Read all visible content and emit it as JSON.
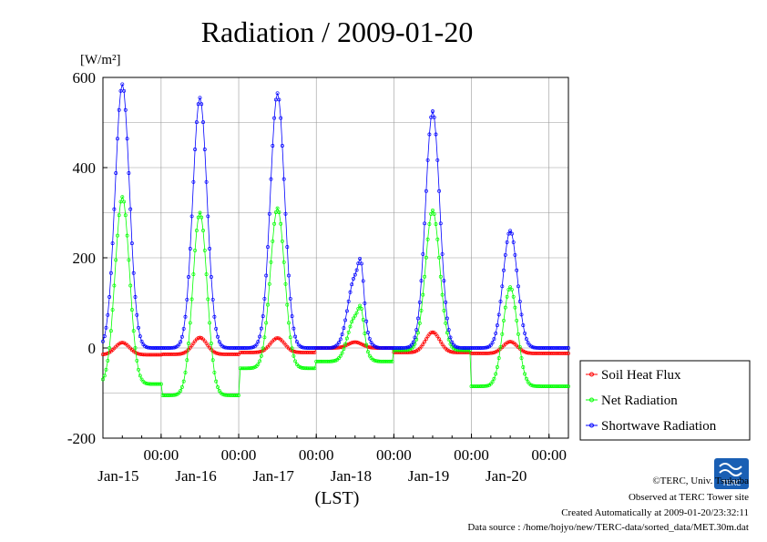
{
  "chart_data": {
    "type": "line",
    "title": "Radiation / 2009-01-20",
    "ylabel": "[W/m²]",
    "xlabel": "(LST)",
    "ylim": [
      -200,
      600
    ],
    "xlim": [
      -0.25,
      5.75
    ],
    "grid": true,
    "legend_position": "right-bottom-outside",
    "y_ticks": [
      "600",
      "400",
      "200",
      "0",
      "-200"
    ],
    "y_tick_values": [
      600,
      400,
      200,
      0,
      -200
    ],
    "x_ticks": [
      {
        "time": "00:00",
        "date": "Jan-15"
      },
      {
        "time": "00:00",
        "date": "Jan-16"
      },
      {
        "time": "00:00",
        "date": "Jan-17"
      },
      {
        "time": "00:00",
        "date": "Jan-18"
      },
      {
        "time": "00:00",
        "date": "Jan-19"
      },
      {
        "time": "00:00",
        "date": "Jan-20"
      }
    ],
    "x_tick_values": [
      0.5,
      1.5,
      2.5,
      3.5,
      4.5,
      5.5
    ],
    "series": [
      {
        "name": "Soil Heat Flux",
        "color": "#ff0000",
        "marker": "circle",
        "day_peaks": [
          12,
          23,
          22,
          13,
          35,
          14
        ],
        "night_level": [
          -15,
          -14,
          -10,
          0,
          -10,
          -12
        ]
      },
      {
        "name": "Net Radiation",
        "color": "#00ff00",
        "marker": "circle",
        "day_peaks": [
          335,
          300,
          310,
          120,
          305,
          135
        ],
        "night_level": [
          -80,
          -105,
          -45,
          -30,
          -5,
          -85
        ]
      },
      {
        "name": "Shortwave Radiation",
        "color": "#0000ff",
        "marker": "circle",
        "day_peaks": [
          585,
          555,
          565,
          240,
          525,
          260
        ],
        "night_level": [
          0,
          0,
          0,
          0,
          0,
          0
        ]
      }
    ]
  },
  "credits": {
    "copyright": "©TERC, Univ. Tsukuba",
    "observed": "Observed at TERC Tower site",
    "created": "Created Automatically at 2009-01-20/23:32:11",
    "source": "Data source : /home/hojyo/new/TERC-data/sorted_data/MET.30m.dat"
  },
  "logo": {
    "text": "TERC",
    "color": "#1a5fb4"
  }
}
